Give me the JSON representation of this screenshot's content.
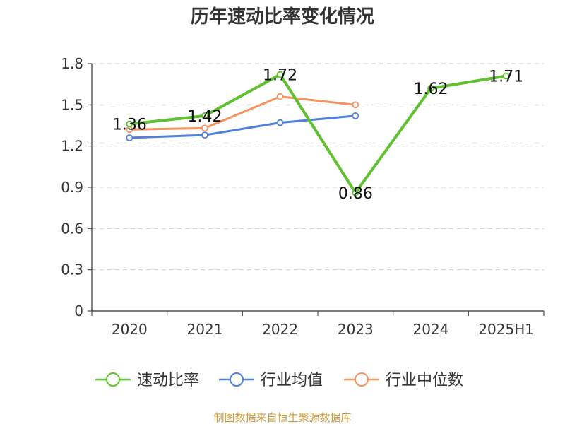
{
  "chart_data": {
    "type": "line",
    "title": "历年速动比率变化情况",
    "categories": [
      "2020",
      "2021",
      "2022",
      "2023",
      "2024",
      "2025H1"
    ],
    "ylim": [
      0,
      1.8
    ],
    "yticks": [
      0,
      0.3,
      0.6,
      0.9,
      1.2,
      1.5,
      1.8
    ],
    "ytick_labels": [
      "0",
      "0.3",
      "0.6",
      "0.9",
      "1.2",
      "1.5",
      "1.8"
    ],
    "grid": true,
    "legend_position": "bottom",
    "series": [
      {
        "name": "速动比率",
        "color": "#5ec12d",
        "labeled": true,
        "values": [
          1.36,
          1.42,
          1.72,
          0.86,
          1.62,
          1.71
        ],
        "labels": [
          "1.36",
          "1.42",
          "1.72",
          "0.86",
          "1.62",
          "1.71"
        ]
      },
      {
        "name": "行业均值",
        "color": "#4e80dc",
        "labeled": false,
        "values": [
          1.26,
          1.28,
          1.37,
          1.42,
          null,
          null
        ]
      },
      {
        "name": "行业中位数",
        "color": "#f5935f",
        "labeled": false,
        "values": [
          1.32,
          1.33,
          1.56,
          1.5,
          null,
          null
        ]
      }
    ],
    "source": "制图数据来自恒生聚源数据库",
    "source_color": "#c99a3c"
  }
}
